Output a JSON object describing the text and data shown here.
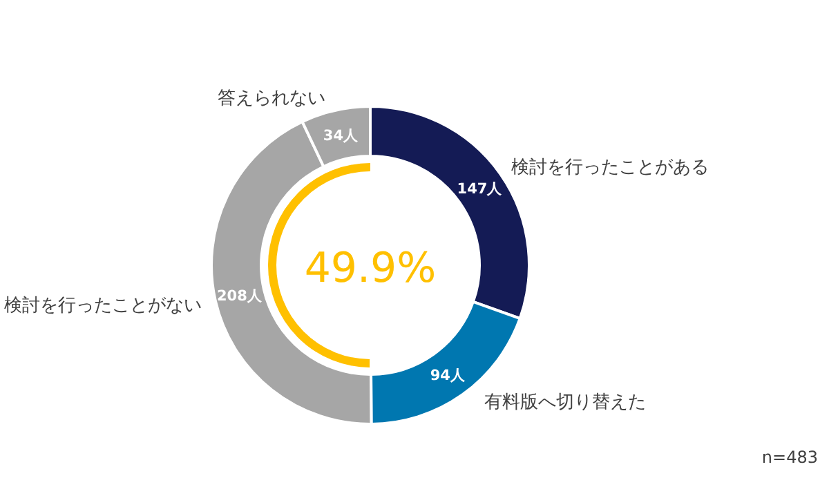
{
  "chart_data": {
    "type": "donut",
    "categories": [
      "検討を行ったことがある",
      "有料版へ切り替えた",
      "検討を行ったことがない",
      "答えられない"
    ],
    "values": [
      147,
      94,
      208,
      34
    ],
    "colors": [
      "#141b55",
      "#0077b0",
      "#a6a6a6",
      "#a6a6a6"
    ],
    "value_labels": [
      "147人",
      "94人",
      "208人",
      "34人"
    ],
    "annotations": [
      "49.9%",
      "n=483"
    ]
  }
}
